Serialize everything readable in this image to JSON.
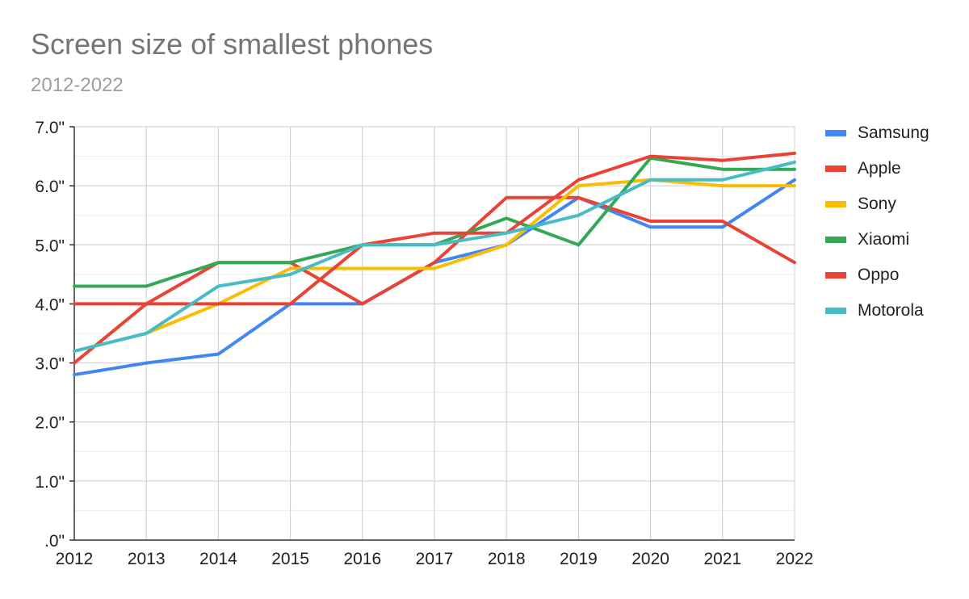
{
  "chart_data": {
    "type": "line",
    "title": "Screen size of smallest phones",
    "subtitle": "2012-2022",
    "xlabel": "",
    "ylabel": "",
    "x": [
      "2012",
      "2013",
      "2014",
      "2015",
      "2016",
      "2017",
      "2018",
      "2019",
      "2020",
      "2021",
      "2022"
    ],
    "yticks": [
      0,
      1,
      2,
      3,
      4,
      5,
      6,
      7
    ],
    "ytick_labels": [
      ".0\"",
      "1.0\"",
      "2.0\"",
      "3.0\"",
      "4.0\"",
      "5.0\"",
      "6.0\"",
      "7.0\""
    ],
    "ylim": [
      0,
      7
    ],
    "grid": true,
    "legend_position": "right",
    "series": [
      {
        "name": "Samsung",
        "color": "#4285f4",
        "values": [
          2.8,
          3.0,
          3.15,
          4.0,
          4.0,
          4.7,
          5.0,
          5.8,
          5.3,
          5.3,
          6.1
        ]
      },
      {
        "name": "Apple",
        "color": "#ea4335",
        "values": [
          3.0,
          4.0,
          4.7,
          4.7,
          4.0,
          4.7,
          5.8,
          5.8,
          5.4,
          5.4,
          4.7
        ]
      },
      {
        "name": "Sony",
        "color": "#fbbc04",
        "values": [
          3.2,
          3.5,
          4.0,
          4.6,
          4.6,
          4.6,
          5.0,
          6.0,
          6.1,
          6.0,
          6.0
        ]
      },
      {
        "name": "Xiaomi",
        "color": "#34a853",
        "values": [
          4.3,
          4.3,
          4.7,
          4.7,
          5.0,
          5.0,
          5.45,
          5.0,
          6.47,
          6.28,
          6.28
        ]
      },
      {
        "name": "Oppo",
        "color": "#ea4335",
        "values": [
          4.0,
          4.0,
          4.0,
          4.0,
          5.0,
          5.2,
          5.2,
          6.1,
          6.5,
          6.43,
          6.55
        ]
      },
      {
        "name": "Motorola",
        "color": "#46bdc6",
        "values": [
          3.2,
          3.5,
          4.3,
          4.5,
          5.0,
          5.0,
          5.2,
          5.5,
          6.1,
          6.1,
          6.4
        ]
      }
    ]
  }
}
